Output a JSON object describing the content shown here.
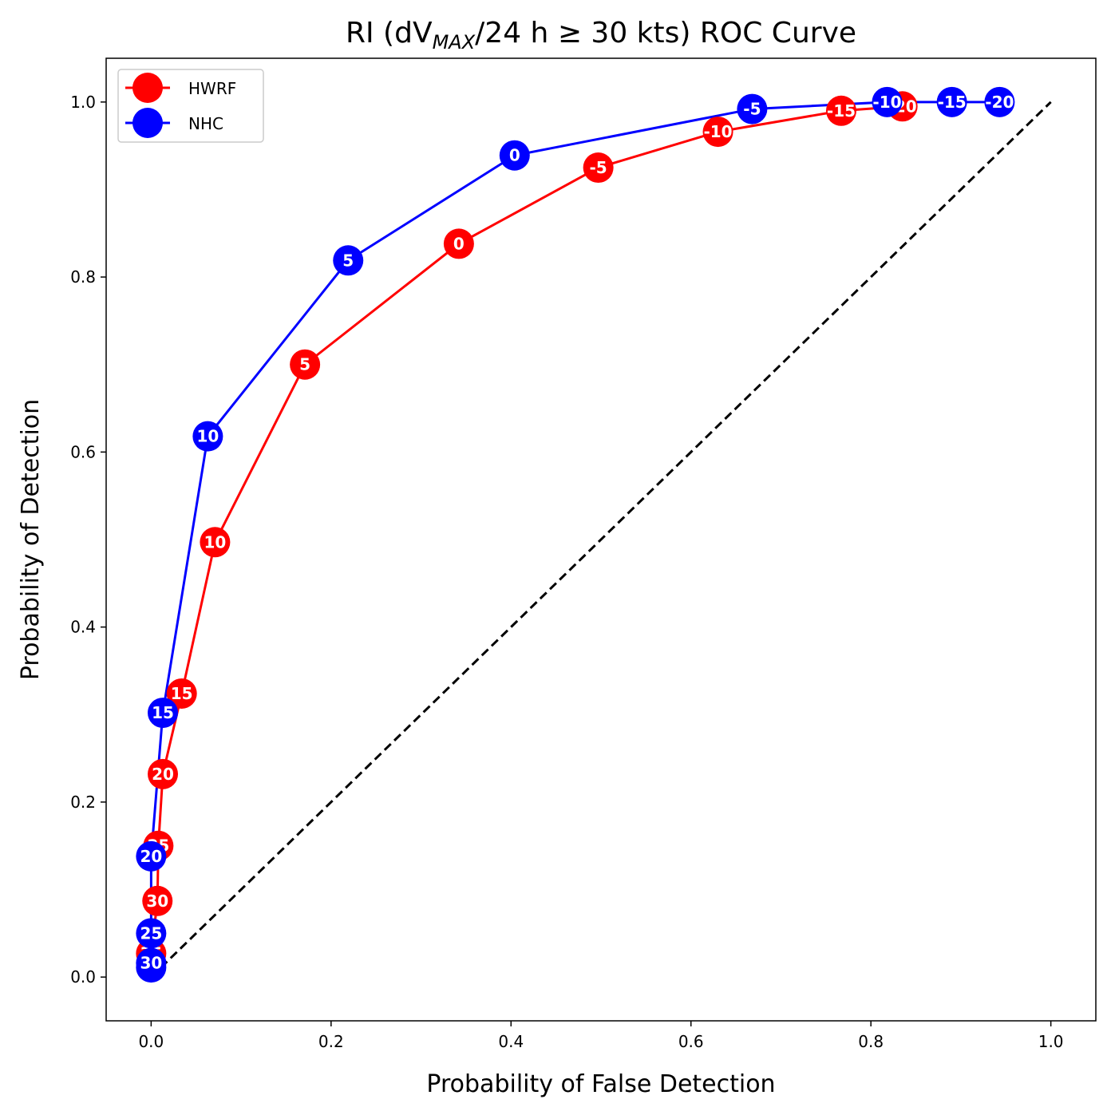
{
  "chart_data": {
    "type": "line",
    "title": "RI (dV",
    "title_sub": "MAX",
    "title_rest": "/24 h ≥ 30 kts) ROC Curve",
    "xlabel": "Probability of False Detection",
    "ylabel": "Probability of Detection",
    "xlim": [
      -0.05,
      1.05
    ],
    "ylim": [
      -0.05,
      1.05
    ],
    "xticks": [
      "0.0",
      "0.2",
      "0.4",
      "0.6",
      "0.8",
      "1.0"
    ],
    "yticks": [
      "0.0",
      "0.2",
      "0.4",
      "0.6",
      "0.8",
      "1.0"
    ],
    "xtick_values": [
      0,
      0.2,
      0.4,
      0.6,
      0.8,
      1.0
    ],
    "ytick_values": [
      0,
      0.2,
      0.4,
      0.6,
      0.8,
      1.0
    ],
    "grid": false,
    "legend_position": "top-left",
    "reference_line": {
      "x": [
        0,
        1
      ],
      "y": [
        0,
        1
      ],
      "style": "dashed",
      "color": "#000000"
    },
    "series": [
      {
        "name": "HWRF",
        "color": "#ff0000",
        "points": [
          {
            "x": 0.0,
            "y": 0.027,
            "label": "35"
          },
          {
            "x": 0.007,
            "y": 0.087,
            "label": "30"
          },
          {
            "x": 0.008,
            "y": 0.15,
            "label": "25"
          },
          {
            "x": 0.013,
            "y": 0.232,
            "label": "20"
          },
          {
            "x": 0.034,
            "y": 0.324,
            "label": "15"
          },
          {
            "x": 0.071,
            "y": 0.497,
            "label": "10"
          },
          {
            "x": 0.171,
            "y": 0.7,
            "label": "5"
          },
          {
            "x": 0.342,
            "y": 0.838,
            "label": "0"
          },
          {
            "x": 0.497,
            "y": 0.925,
            "label": "-5"
          },
          {
            "x": 0.63,
            "y": 0.966,
            "label": "-10"
          },
          {
            "x": 0.767,
            "y": 0.99,
            "label": "-15"
          },
          {
            "x": 0.835,
            "y": 0.995,
            "label": "-20"
          }
        ]
      },
      {
        "name": "NHC",
        "color": "#0000ff",
        "points": [
          {
            "x": 0.0,
            "y": 0.011,
            "label": "35"
          },
          {
            "x": 0.0,
            "y": 0.016,
            "label": "30"
          },
          {
            "x": 0.0,
            "y": 0.05,
            "label": "25"
          },
          {
            "x": 0.0,
            "y": 0.138,
            "label": "20"
          },
          {
            "x": 0.013,
            "y": 0.302,
            "label": "15"
          },
          {
            "x": 0.063,
            "y": 0.618,
            "label": "10"
          },
          {
            "x": 0.219,
            "y": 0.819,
            "label": "5"
          },
          {
            "x": 0.404,
            "y": 0.939,
            "label": "0"
          },
          {
            "x": 0.668,
            "y": 0.992,
            "label": "-5"
          },
          {
            "x": 0.818,
            "y": 1.0,
            "label": "-10"
          },
          {
            "x": 0.89,
            "y": 1.0,
            "label": "-15"
          },
          {
            "x": 0.943,
            "y": 1.0,
            "label": "-20"
          }
        ]
      }
    ]
  }
}
